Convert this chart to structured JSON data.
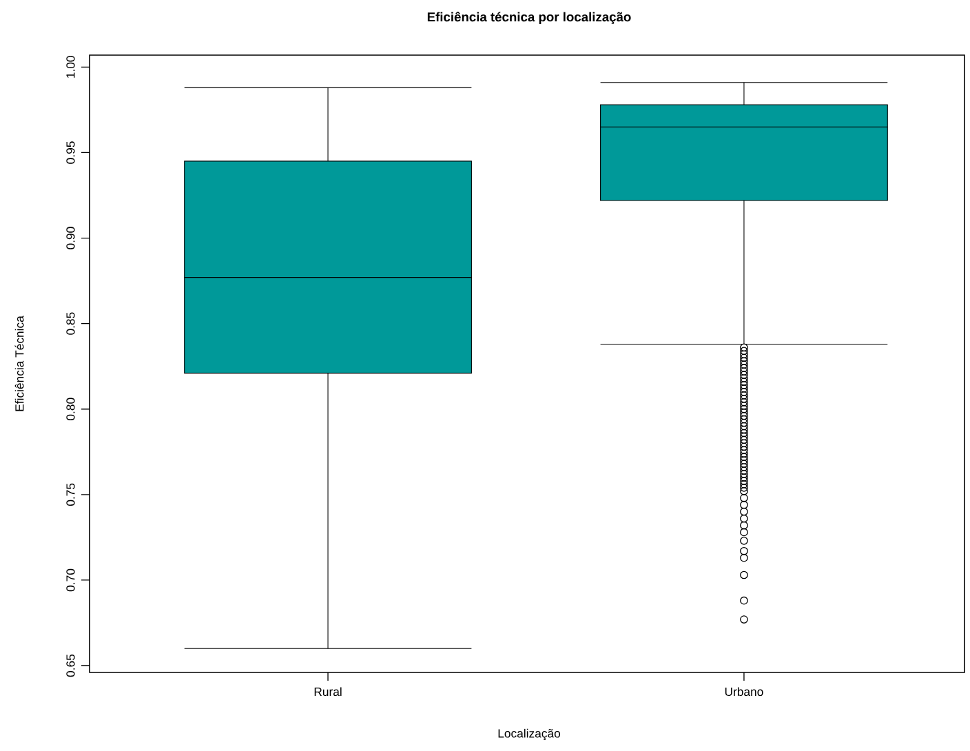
{
  "chart_data": {
    "type": "box",
    "title": "Eficiência técnica por localização",
    "xlabel": "Localização",
    "ylabel": "Eficiência Técnica",
    "categories": [
      "Rural",
      "Urbano"
    ],
    "color": "#009999",
    "boxes": [
      {
        "low": 0.66,
        "q1": 0.821,
        "median": 0.877,
        "q3": 0.945,
        "high": 0.988
      },
      {
        "low": 0.838,
        "q1": 0.922,
        "median": 0.965,
        "q3": 0.978,
        "high": 0.991,
        "outliers": [
          0.836,
          0.834,
          0.832,
          0.83,
          0.828,
          0.826,
          0.824,
          0.822,
          0.82,
          0.818,
          0.816,
          0.814,
          0.812,
          0.81,
          0.808,
          0.806,
          0.804,
          0.802,
          0.8,
          0.798,
          0.796,
          0.794,
          0.792,
          0.79,
          0.788,
          0.786,
          0.784,
          0.782,
          0.78,
          0.778,
          0.776,
          0.774,
          0.772,
          0.77,
          0.768,
          0.766,
          0.764,
          0.762,
          0.76,
          0.758,
          0.756,
          0.754,
          0.752,
          0.748,
          0.744,
          0.74,
          0.736,
          0.732,
          0.728,
          0.723,
          0.717,
          0.713,
          0.703,
          0.688,
          0.677
        ]
      }
    ],
    "ylim": [
      0.646,
      1.007
    ],
    "yticks": [
      {
        "value": 0.65,
        "label": "0.65"
      },
      {
        "value": 0.7,
        "label": "0.70"
      },
      {
        "value": 0.75,
        "label": "0.75"
      },
      {
        "value": 0.8,
        "label": "0.80"
      },
      {
        "value": 0.85,
        "label": "0.85"
      },
      {
        "value": 0.9,
        "label": "0.90"
      },
      {
        "value": 0.95,
        "label": "0.95"
      },
      {
        "value": 1.0,
        "label": "1.00"
      }
    ]
  }
}
